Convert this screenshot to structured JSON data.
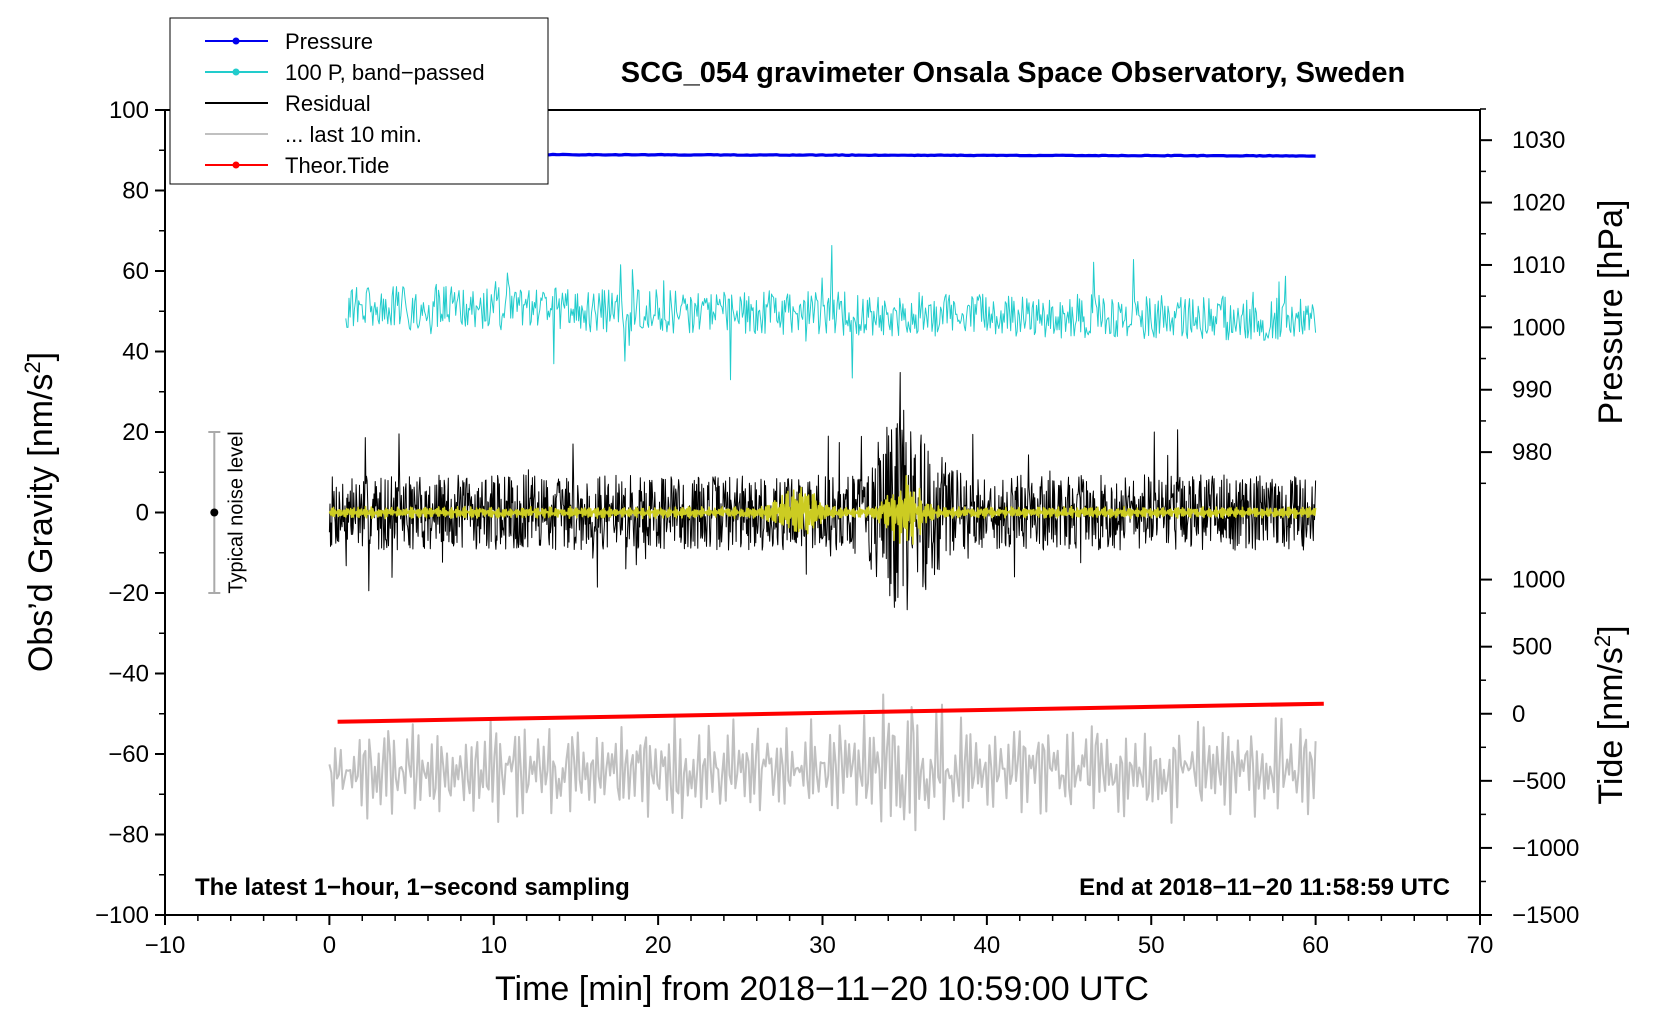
{
  "chart_data": {
    "type": "line",
    "title": "SCG_054 gravimeter Onsala Space Observatory, Sweden",
    "xlabel": "Time [min] from 2018−11−20 10:59:00 UTC",
    "ylabel_left_main": "Obs’d Gravity [nm/s",
    "ylabel_left_sup": "2",
    "ylabel_left_end": "]",
    "ylabel_right_pressure": "Pressure [hPa]",
    "ylabel_right_tide_main": "Tide [nm/s",
    "ylabel_right_tide_sup": "2",
    "ylabel_right_tide_end": "]",
    "xlim": [
      -10,
      70
    ],
    "ylim": [
      -100,
      100
    ],
    "x_ticks": [
      -10,
      0,
      10,
      20,
      30,
      40,
      50,
      60,
      70
    ],
    "x_tick_labels": [
      "−10",
      "0",
      "10",
      "20",
      "30",
      "40",
      "50",
      "60",
      "70"
    ],
    "y_ticks": [
      -100,
      -80,
      -60,
      -40,
      -20,
      0,
      20,
      40,
      60,
      80,
      100
    ],
    "y_tick_labels": [
      "−100",
      "−80",
      "−60",
      "−40",
      "−20",
      "0",
      "20",
      "40",
      "60",
      "80",
      "100"
    ],
    "pressure_axis": {
      "ticks": [
        980,
        990,
        1000,
        1010,
        1020,
        1030
      ],
      "tick_labels": [
        "980",
        "990",
        "1000",
        "1010",
        "1020",
        "1030"
      ],
      "ref_value": 1000,
      "ref_gravity": 46,
      "gravity_per_unit": 1.55
    },
    "tide_axis": {
      "ticks": [
        -1500,
        -1000,
        -500,
        0,
        500,
        1000
      ],
      "tick_labels": [
        "−1500",
        "−1000",
        "−500",
        "0",
        "500",
        "1000"
      ],
      "ref_value": -1500,
      "ref_gravity": -100,
      "gravity_per_unit": 0.033333
    },
    "series": [
      {
        "name": "Pressure",
        "color": "#0000ee",
        "x_range": [
          0,
          60
        ],
        "start": 89.0,
        "end": 88.6,
        "noise": 0.15
      },
      {
        "name": "100 P, band−passed",
        "color": "#22cccc",
        "x_range": [
          1,
          60
        ],
        "center": 51,
        "amplitude": 5.5,
        "spike_max": 17
      },
      {
        "name": "Residual",
        "color": "#000000",
        "x_range": [
          0,
          60
        ],
        "center": 0,
        "amplitude": 11,
        "burst_min": 35,
        "burst_amplitude": 30
      },
      {
        "name": "... last 10 min.",
        "color": "#c0c0c0",
        "x_range": [
          0,
          60
        ],
        "center": -64,
        "amplitude": 11,
        "burst_min": 35,
        "burst_amplitude": 19
      },
      {
        "name": "Theor.Tide",
        "color": "#ff0000",
        "x_range": [
          0.5,
          60.5
        ],
        "start": -52,
        "end": -47.5
      },
      {
        "name": "band-passed residual",
        "color": "#cccc22",
        "x_range": [
          0,
          60
        ],
        "center": 0,
        "amplitude": 1.5,
        "bursts": [
          {
            "at": 28.5,
            "amplitude": 7
          },
          {
            "at": 35,
            "amplitude": 8
          }
        ]
      }
    ],
    "legend": {
      "position": "top-left",
      "entries": [
        {
          "label": "Pressure",
          "color": "#0000ee",
          "marker": true
        },
        {
          "label": "100 P, band−passed",
          "color": "#22cccc",
          "marker": true
        },
        {
          "label": "Residual",
          "color": "#000000",
          "marker": false
        },
        {
          "label": "... last 10 min.",
          "color": "#c0c0c0",
          "marker": false
        },
        {
          "label": "Theor.Tide",
          "color": "#ff0000",
          "marker": true
        }
      ]
    },
    "noise_level": {
      "label": "Typical noise level",
      "x": -7,
      "min": -20,
      "max": 20,
      "center": 0
    },
    "annotations": {
      "bottom_left": "The latest 1−hour, 1−second sampling",
      "bottom_right": "End at 2018−11−20 11:58:59 UTC"
    }
  }
}
